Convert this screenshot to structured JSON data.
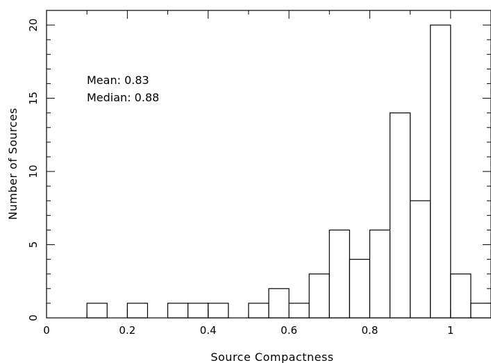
{
  "chart_data": {
    "type": "bar",
    "xlabel": "Source Compactness",
    "ylabel": "Number of Sources",
    "xlim": [
      0,
      1.1
    ],
    "ylim": [
      0,
      21
    ],
    "xticks": [
      0,
      0.2,
      0.4,
      0.6,
      0.8,
      1
    ],
    "yticks": [
      0,
      5,
      10,
      15,
      20
    ],
    "bin_width": 0.05,
    "bins": [
      {
        "start": 0.1,
        "value": 1
      },
      {
        "start": 0.2,
        "value": 1
      },
      {
        "start": 0.3,
        "value": 1
      },
      {
        "start": 0.35,
        "value": 1
      },
      {
        "start": 0.4,
        "value": 1
      },
      {
        "start": 0.5,
        "value": 1
      },
      {
        "start": 0.55,
        "value": 2
      },
      {
        "start": 0.6,
        "value": 1
      },
      {
        "start": 0.65,
        "value": 3
      },
      {
        "start": 0.7,
        "value": 6
      },
      {
        "start": 0.75,
        "value": 4
      },
      {
        "start": 0.8,
        "value": 6
      },
      {
        "start": 0.85,
        "value": 14
      },
      {
        "start": 0.9,
        "value": 8
      },
      {
        "start": 0.95,
        "value": 20
      },
      {
        "start": 1.0,
        "value": 3
      },
      {
        "start": 1.05,
        "value": 1
      }
    ],
    "annotations": {
      "mean": "Mean: 0.83",
      "median": "Median: 0.88"
    },
    "grid": false,
    "bar_fill": "#ffffff",
    "bar_stroke": "#000000"
  }
}
